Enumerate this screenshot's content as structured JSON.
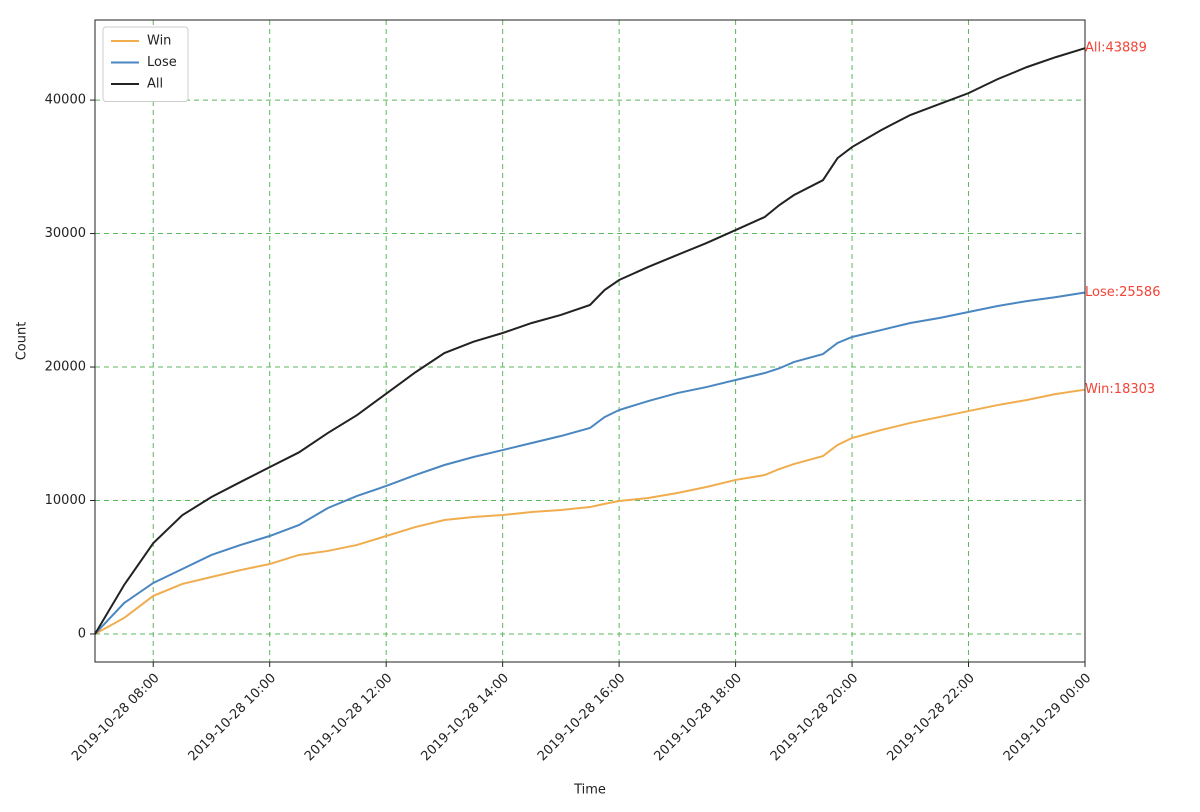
{
  "chart_data": {
    "type": "line",
    "x_label": "Time",
    "y_label": "Count",
    "x": [
      "2019-10-28 07:00",
      "2019-10-28 07:30",
      "2019-10-28 08:00",
      "2019-10-28 08:30",
      "2019-10-28 09:00",
      "2019-10-28 09:30",
      "2019-10-28 10:00",
      "2019-10-28 10:30",
      "2019-10-28 11:00",
      "2019-10-28 11:30",
      "2019-10-28 12:00",
      "2019-10-28 12:30",
      "2019-10-28 13:00",
      "2019-10-28 13:30",
      "2019-10-28 14:00",
      "2019-10-28 14:30",
      "2019-10-28 15:00",
      "2019-10-28 15:30",
      "2019-10-28 15:45",
      "2019-10-28 16:00",
      "2019-10-28 16:30",
      "2019-10-28 17:00",
      "2019-10-28 17:30",
      "2019-10-28 18:00",
      "2019-10-28 18:30",
      "2019-10-28 18:45",
      "2019-10-28 19:00",
      "2019-10-28 19:30",
      "2019-10-28 19:45",
      "2019-10-28 20:00",
      "2019-10-28 20:30",
      "2019-10-28 21:00",
      "2019-10-28 21:30",
      "2019-10-28 22:00",
      "2019-10-28 22:30",
      "2019-10-28 23:00",
      "2019-10-28 23:30",
      "2019-10-29 00:00"
    ],
    "series": [
      {
        "name": "Win",
        "color": "#f0ad4e",
        "end_label": "Win:18303",
        "values": [
          0,
          1200,
          2850,
          3750,
          4270,
          4790,
          5240,
          5920,
          6220,
          6670,
          7340,
          8010,
          8540,
          8760,
          8910,
          9140,
          9290,
          9510,
          9750,
          9960,
          10190,
          10560,
          11010,
          11540,
          11910,
          12360,
          12730,
          13330,
          14160,
          14680,
          15280,
          15810,
          16250,
          16700,
          17150,
          17530,
          17980,
          18303
        ]
      },
      {
        "name": "Lose",
        "color": "#4a86c0",
        "end_label": "Lose:25586",
        "values": [
          0,
          2320,
          3820,
          4870,
          5920,
          6670,
          7340,
          8160,
          9440,
          10340,
          11090,
          11910,
          12660,
          13260,
          13780,
          14310,
          14830,
          15430,
          16250,
          16780,
          17450,
          18050,
          18500,
          19030,
          19550,
          19900,
          20370,
          20970,
          21800,
          22250,
          22770,
          23300,
          23670,
          24120,
          24570,
          24940,
          25240,
          25586
        ]
      },
      {
        "name": "All",
        "color": "#222222",
        "end_label": "All:43889",
        "values": [
          0,
          3670,
          6800,
          8900,
          10260,
          11390,
          12500,
          13600,
          15060,
          16400,
          18000,
          19600,
          21050,
          21900,
          22550,
          23300,
          23900,
          24650,
          25770,
          26520,
          27500,
          28400,
          29290,
          30260,
          31240,
          32130,
          32880,
          34000,
          35650,
          36480,
          37750,
          38880,
          39700,
          40520,
          41570,
          42470,
          43220,
          43889
        ]
      }
    ],
    "end_label_color": "#f44336",
    "xlim": [
      "2019-10-28 07:00",
      "2019-10-29 00:00"
    ],
    "xticks": [
      "2019-10-28 08:00",
      "2019-10-28 10:00",
      "2019-10-28 12:00",
      "2019-10-28 14:00",
      "2019-10-28 16:00",
      "2019-10-28 18:00",
      "2019-10-28 20:00",
      "2019-10-28 22:00",
      "2019-10-29 00:00"
    ],
    "ylim": [
      -2100,
      46000
    ],
    "yticks": [
      0,
      10000,
      20000,
      30000,
      40000
    ],
    "grid": true,
    "legend": "upper-left"
  }
}
